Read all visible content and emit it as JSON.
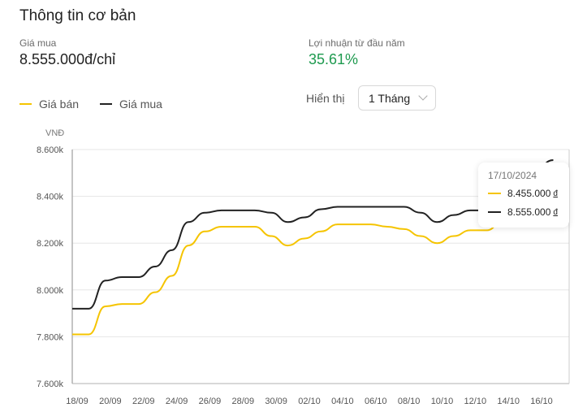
{
  "header": {
    "title": "Thông tin cơ bản"
  },
  "stats": {
    "buy": {
      "label": "Giá mua",
      "value": "8.555.000đ/chỉ"
    },
    "ytd": {
      "label": "Lợi nhuận từ đầu năm",
      "value": "35.61%"
    }
  },
  "legend": [
    {
      "label": "Giá bán",
      "color": "#f5c400"
    },
    {
      "label": "Giá mua",
      "color": "#222222"
    }
  ],
  "display": {
    "label": "Hiển thị",
    "selected": "1 Tháng"
  },
  "tooltip": {
    "date": "17/10/2024",
    "rows": [
      {
        "value": "8.455.000",
        "currency": "đ",
        "color": "#f5c400"
      },
      {
        "value": "8.555.000",
        "currency": "đ",
        "color": "#222222"
      }
    ]
  },
  "chart_data": {
    "type": "line",
    "title": "",
    "xlabel": "",
    "ylabel": "VNĐ",
    "ylim": [
      7600,
      8600
    ],
    "y_ticks": [
      "7.600k",
      "7.800k",
      "8.000k",
      "8.200k",
      "8.400k",
      "8.600k"
    ],
    "x_ticks": [
      "18/09",
      "20/09",
      "22/09",
      "24/09",
      "26/09",
      "28/09",
      "30/09",
      "02/10",
      "04/10",
      "06/10",
      "08/10",
      "10/10",
      "12/10",
      "14/10",
      "16/10"
    ],
    "grid": true,
    "legend_position": "top-left",
    "x": [
      "18/09",
      "19/09",
      "20/09",
      "21/09",
      "22/09",
      "23/09",
      "24/09",
      "25/09",
      "26/09",
      "27/09",
      "28/09",
      "29/09",
      "30/09",
      "01/10",
      "02/10",
      "03/10",
      "04/10",
      "05/10",
      "06/10",
      "07/10",
      "08/10",
      "09/10",
      "10/10",
      "11/10",
      "12/10",
      "13/10",
      "14/10",
      "15/10",
      "16/10",
      "17/10"
    ],
    "series": [
      {
        "name": "Giá bán",
        "color": "#f5c400",
        "values": [
          7810,
          7810,
          7930,
          7940,
          7940,
          7990,
          8060,
          8190,
          8250,
          8270,
          8270,
          8270,
          8230,
          8190,
          8220,
          8250,
          8280,
          8280,
          8280,
          8270,
          8260,
          8230,
          8200,
          8230,
          8255,
          8255,
          8300,
          8360,
          8420,
          8455
        ]
      },
      {
        "name": "Giá mua",
        "color": "#222222",
        "values": [
          7920,
          7920,
          8040,
          8055,
          8055,
          8100,
          8170,
          8290,
          8330,
          8340,
          8340,
          8340,
          8330,
          8290,
          8310,
          8345,
          8355,
          8355,
          8355,
          8355,
          8355,
          8330,
          8290,
          8320,
          8340,
          8340,
          8400,
          8460,
          8520,
          8555
        ]
      }
    ]
  }
}
